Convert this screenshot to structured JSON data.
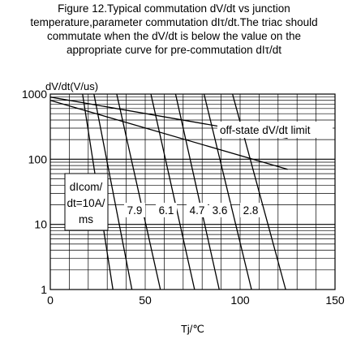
{
  "title_lines": [
    "Figure 12.Typical commutation dV/dt vs junction",
    "temperature,parameter commutation dIτ/dt.The triac should",
    "commutate when the dV/dt is below the value on the",
    "appropriate curve for pre-commutation dIτ/dt"
  ],
  "chart_data": {
    "type": "line",
    "ylabel": "dV/dt(V/us)",
    "xlabel": "Tj/℃",
    "xlim": [
      0,
      150
    ],
    "ylim": [
      1,
      1000
    ],
    "yscale": "log",
    "grid": true,
    "x_ticks": [
      "0",
      "50",
      "100",
      "150"
    ],
    "y_ticks": [
      "1",
      "10",
      "100",
      "1000"
    ],
    "colors": {
      "line": "#000000",
      "grid": "#000000",
      "background": "#ffffff"
    },
    "offstate_limit": {
      "name": "off-state dV/dt limit",
      "lines": [
        {
          "x": [
            0,
            125
          ],
          "y": [
            900,
            210
          ]
        },
        {
          "x": [
            0,
            125
          ],
          "y": [
            800,
            70
          ]
        }
      ]
    },
    "legend_box": {
      "lines": [
        "dIcom/",
        "dt=10A/",
        "ms"
      ]
    },
    "series": [
      {
        "name": "dIcom/dt=10A/ms",
        "x": [
          17,
          33
        ],
        "y": [
          1000,
          1
        ]
      },
      {
        "name": "7.9",
        "x": [
          23,
          43
        ],
        "y": [
          1000,
          1
        ]
      },
      {
        "name": "6.1",
        "x": [
          35,
          58
        ],
        "y": [
          1000,
          1
        ]
      },
      {
        "name": "4.7",
        "x": [
          53,
          76
        ],
        "y": [
          1000,
          1
        ]
      },
      {
        "name": "3.6",
        "x": [
          66,
          89
        ],
        "y": [
          1000,
          1
        ]
      },
      {
        "name": "2.8",
        "x": [
          81,
          106
        ],
        "y": [
          1000,
          1
        ]
      },
      {
        "name": "",
        "x": [
          96,
          124
        ],
        "y": [
          1000,
          1
        ]
      }
    ],
    "curve_labels": [
      "7.9",
      "6.1",
      "4.7",
      "3.6",
      "2.8"
    ]
  }
}
